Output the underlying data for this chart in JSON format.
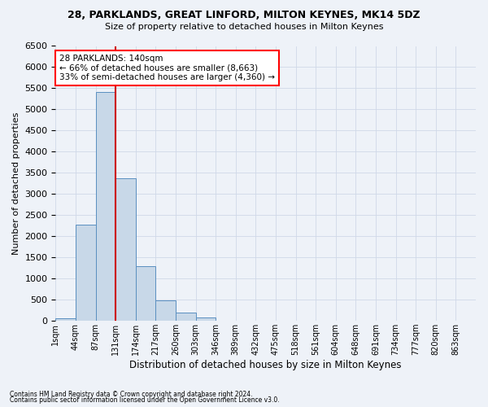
{
  "title1": "28, PARKLANDS, GREAT LINFORD, MILTON KEYNES, MK14 5DZ",
  "title2": "Size of property relative to detached houses in Milton Keynes",
  "xlabel": "Distribution of detached houses by size in Milton Keynes",
  "ylabel": "Number of detached properties",
  "footnote1": "Contains HM Land Registry data © Crown copyright and database right 2024.",
  "footnote2": "Contains public sector information licensed under the Open Government Licence v3.0.",
  "annotation_line1": "28 PARKLANDS: 140sqm",
  "annotation_line2": "← 66% of detached houses are smaller (8,663)",
  "annotation_line3": "33% of semi-detached houses are larger (4,360) →",
  "bar_color": "#c8d8e8",
  "bar_edge_color": "#5a8fc0",
  "grid_color": "#d0d8e8",
  "red_line_color": "#cc0000",
  "background_color": "#eef2f8",
  "bin_labels": [
    "1sqm",
    "44sqm",
    "87sqm",
    "131sqm",
    "174sqm",
    "217sqm",
    "260sqm",
    "303sqm",
    "346sqm",
    "389sqm",
    "432sqm",
    "475sqm",
    "518sqm",
    "561sqm",
    "604sqm",
    "648sqm",
    "691sqm",
    "734sqm",
    "777sqm",
    "820sqm",
    "863sqm"
  ],
  "bar_values": [
    70,
    2270,
    5420,
    3380,
    1300,
    490,
    190,
    75,
    0,
    0,
    0,
    0,
    0,
    0,
    0,
    0,
    0,
    0,
    0,
    0,
    0
  ],
  "red_line_x": 3,
  "ylim": [
    0,
    6500
  ],
  "yticks": [
    0,
    500,
    1000,
    1500,
    2000,
    2500,
    3000,
    3500,
    4000,
    4500,
    5000,
    5500,
    6000,
    6500
  ]
}
